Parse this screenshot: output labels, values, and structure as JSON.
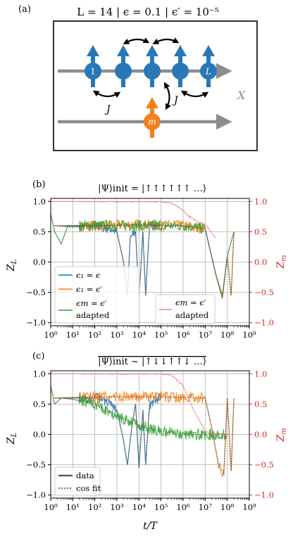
{
  "panel_a": {
    "label": "(a)",
    "title": "L = 14 | ϵ = 0.1 | ϵ′ = 10⁻⁵",
    "site_first": "1",
    "site_last": "L",
    "coupling_left": "J",
    "coupling_right": "J",
    "ancilla": "m",
    "axis": "X",
    "colors": {
      "spin": "#2878b8",
      "ancilla": "#f08020",
      "track": "#8c8c8c"
    }
  },
  "chart_data": [
    {
      "type": "line",
      "panel_label": "(b)",
      "title": "|Ψ⟩init = |↑↑↑↑↑↑ …⟩",
      "xlabel": "t/T",
      "ylabel": "Z_L",
      "ylabel_right": "Z_m",
      "xscale": "log",
      "xlim": [
        1,
        1000000000
      ],
      "ylim": [
        -1.05,
        1.05
      ],
      "ylim_right": [
        -1.05,
        1.05
      ],
      "x_ticks": [
        "10⁰",
        "10¹",
        "10²",
        "10³",
        "10⁴",
        "10⁵",
        "10⁶",
        "10⁷",
        "10⁸",
        "10⁹"
      ],
      "y_ticks": [
        "1.0",
        "0.5",
        "0.0",
        "−0.5",
        "−1.0"
      ],
      "y_ticks_right": [
        "1.0",
        "0.5",
        "0.0",
        "−0.5",
        "−1.0"
      ],
      "grid": true,
      "legend_left": [
        "ϵ₁ = ϵ",
        "ϵ₁ = ϵ′",
        "ϵm = ϵ′",
        "adapted"
      ],
      "legend_right": [
        "ϵm = ϵ′",
        "adapted"
      ],
      "series": [
        {
          "name": "ϵ₁ = ϵ",
          "color": "#1f77b4",
          "points": [
            [
              1.5,
              0.6
            ],
            [
              10,
              0.58
            ],
            [
              100,
              0.6
            ],
            [
              500,
              0.55
            ],
            [
              1000,
              0.5
            ],
            [
              2000,
              0.0
            ],
            [
              3000,
              -0.55
            ],
            [
              4000,
              0.4
            ],
            [
              7000,
              0.5
            ],
            [
              10000,
              -0.6
            ],
            [
              15000,
              0.5
            ],
            [
              20000,
              -0.55
            ],
            [
              30000,
              0.6
            ],
            [
              100000,
              0.6
            ]
          ]
        },
        {
          "name": "ϵ₁ = ϵ′",
          "color": "#ff7f0e",
          "points": [
            [
              1.5,
              0.6
            ],
            [
              100,
              0.6
            ],
            [
              10000,
              0.62
            ],
            [
              1000000,
              0.6
            ],
            [
              10000000,
              0.55
            ],
            [
              30000000,
              -0.2
            ],
            [
              60000000,
              -0.6
            ],
            [
              100000000,
              0.1
            ],
            [
              150000000,
              -0.55
            ],
            [
              200000000,
              0.5
            ]
          ]
        },
        {
          "name": "ϵm = ϵ′ adapted (left axis)",
          "color": "#2ca02c",
          "points": [
            [
              1,
              0.8
            ],
            [
              1.5,
              0.5
            ],
            [
              3,
              0.3
            ],
            [
              6,
              0.6
            ],
            [
              100,
              0.6
            ],
            [
              10000,
              0.6
            ],
            [
              1000000,
              0.6
            ],
            [
              10000000,
              0.55
            ],
            [
              30000000,
              -0.2
            ],
            [
              60000000,
              -0.55
            ],
            [
              100000000,
              0.1
            ],
            [
              200000000,
              0.5
            ]
          ]
        },
        {
          "name": "ϵm = ϵ′ adapted (right axis)",
          "color": "#e88a80",
          "points": [
            [
              1,
              1.0
            ],
            [
              100000,
              1.0
            ],
            [
              300000,
              0.97
            ],
            [
              1000000,
              0.85
            ],
            [
              1500000,
              0.78
            ],
            [
              3000000,
              0.7
            ],
            [
              10000000,
              0.62
            ],
            [
              30000000,
              0.4
            ]
          ]
        }
      ]
    },
    {
      "type": "line",
      "panel_label": "(c)",
      "title": "|Ψ⟩init ~ |↑↓↓↑↑↓ …⟩",
      "xlabel": "t/T",
      "ylabel": "Z_L",
      "ylabel_right": "Z_m",
      "xscale": "log",
      "xlim": [
        1,
        1000000000
      ],
      "ylim": [
        -1.05,
        1.05
      ],
      "ylim_right": [
        -1.05,
        1.05
      ],
      "x_ticks": [
        "10⁰",
        "10¹",
        "10²",
        "10³",
        "10⁴",
        "10⁵",
        "10⁶",
        "10⁷",
        "10⁸",
        "10⁹"
      ],
      "y_ticks": [
        "1.0",
        "0.5",
        "0.0",
        "−0.5",
        "−1.0"
      ],
      "y_ticks_right": [
        "1.0",
        "0.5",
        "0.0",
        "−0.5",
        "−1.0"
      ],
      "grid": true,
      "legend": [
        "data",
        "cos fit"
      ],
      "series": [
        {
          "name": "blue",
          "color": "#1f77b4",
          "points": [
            [
              1.5,
              0.6
            ],
            [
              100,
              0.6
            ],
            [
              500,
              0.55
            ],
            [
              1000,
              0.4
            ],
            [
              2000,
              -0.1
            ],
            [
              3000,
              -0.5
            ],
            [
              5000,
              0.2
            ],
            [
              7000,
              0.5
            ],
            [
              10000,
              -0.55
            ],
            [
              15000,
              0.4
            ],
            [
              20000,
              -0.5
            ],
            [
              30000,
              0.5
            ],
            [
              100000,
              0.6
            ]
          ]
        },
        {
          "name": "orange",
          "color": "#ff7f0e",
          "points": [
            [
              1.5,
              0.6
            ],
            [
              100,
              0.62
            ],
            [
              100000,
              0.62
            ],
            [
              10000000,
              0.6
            ],
            [
              20000000,
              0.1
            ],
            [
              40000000,
              -0.5
            ],
            [
              70000000,
              -0.65
            ],
            [
              100000000,
              0.6
            ],
            [
              150000000,
              -0.6
            ],
            [
              200000000,
              0.6
            ]
          ]
        },
        {
          "name": "green",
          "color": "#2ca02c",
          "points": [
            [
              1,
              0.8
            ],
            [
              1.5,
              0.5
            ],
            [
              3,
              0.6
            ],
            [
              10,
              0.58
            ],
            [
              100,
              0.5
            ],
            [
              1000,
              0.3
            ],
            [
              10000,
              0.15
            ],
            [
              100000,
              0.05
            ],
            [
              1000000,
              0.0
            ],
            [
              10000000,
              0.0
            ],
            [
              100000000,
              0.0
            ]
          ]
        },
        {
          "name": "pink",
          "color": "#e88a80",
          "points": [
            [
              1,
              1.0
            ],
            [
              100000,
              1.0
            ],
            [
              300000,
              0.98
            ],
            [
              1000000,
              0.8
            ],
            [
              3000000,
              0.4
            ],
            [
              10000000,
              0.05
            ],
            [
              30000000,
              0.0
            ],
            [
              100000000,
              0.0
            ]
          ]
        }
      ]
    }
  ]
}
